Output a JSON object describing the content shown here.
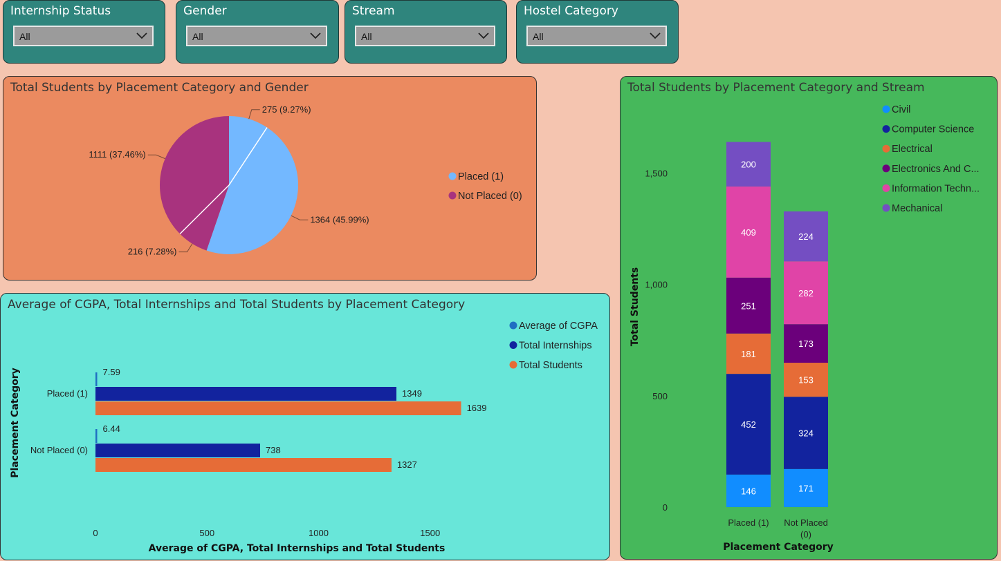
{
  "filters": [
    {
      "title": "Internship Status",
      "value": "All"
    },
    {
      "title": "Gender",
      "value": "All"
    },
    {
      "title": "Stream",
      "value": "All"
    },
    {
      "title": "Hostel Category",
      "value": "All"
    }
  ],
  "colors": {
    "page_bg": "#f5c5b0",
    "slicer_bg": "#2f857d",
    "pie_panel_bg": "#eb8a60",
    "bar_panel_bg": "#68e6d9",
    "stack_panel_bg": "#46b85b",
    "placed": "#73b8ff",
    "not_placed": "#a8337e",
    "cgpa": "#1f6fc2",
    "internships": "#12239e",
    "students": "#e66c37",
    "civil": "#118dff",
    "computer_science": "#12239e",
    "electrical": "#e66c37",
    "electronics": "#6b007b",
    "information_technology": "#e044a7",
    "mechanical": "#744ec2"
  },
  "chart_data": [
    {
      "type": "pie",
      "title": "Total Students by Placement Category and Gender",
      "legend": [
        "Placed (1)",
        "Not Placed (0)"
      ],
      "legend_position": "right",
      "slices": [
        {
          "category": "Placed (1)",
          "value": 275,
          "label": "275 (9.27%)"
        },
        {
          "category": "Placed (1)",
          "value": 1364,
          "label": "1364 (45.99%)"
        },
        {
          "category": "Not Placed (0)",
          "value": 216,
          "label": "216 (7.28%)"
        },
        {
          "category": "Not Placed (0)",
          "value": 1111,
          "label": "1111 (37.46%)"
        }
      ]
    },
    {
      "type": "bar",
      "orientation": "horizontal",
      "title": "Average of CGPA, Total Internships and Total Students by Placement Category",
      "categories": [
        "Placed (1)",
        "Not Placed (0)"
      ],
      "series": [
        {
          "name": "Average of CGPA",
          "values": [
            7.59,
            6.44
          ]
        },
        {
          "name": "Total Internships",
          "values": [
            1349,
            738
          ]
        },
        {
          "name": "Total Students",
          "values": [
            1639,
            1327
          ]
        }
      ],
      "xlabel": "Average of CGPA, Total Internships and Total Students",
      "ylabel": "Placement Category",
      "xticks": [
        "0",
        "500",
        "1000",
        "1500"
      ],
      "xlim": [
        0,
        1800
      ],
      "legend_position": "top-right",
      "grid": false
    },
    {
      "type": "bar",
      "stacked": true,
      "title": "Total Students by Placement Category and Stream",
      "categories": [
        "Placed (1)",
        "Not Placed (0)"
      ],
      "series": [
        {
          "name": "Civil",
          "values": [
            146,
            171
          ]
        },
        {
          "name": "Computer Science",
          "values": [
            452,
            324
          ]
        },
        {
          "name": "Electrical",
          "values": [
            181,
            153
          ]
        },
        {
          "name": "Electronics And C...",
          "values": [
            251,
            173
          ]
        },
        {
          "name": "Information Techn...",
          "values": [
            409,
            282
          ]
        },
        {
          "name": "Mechanical",
          "values": [
            200,
            224
          ]
        }
      ],
      "xlabel": "Placement Category",
      "ylabel": "Total Students",
      "yticks": [
        "0",
        "500",
        "1,000",
        "1,500"
      ],
      "ylim": [
        0,
        1700
      ],
      "legend_position": "top-right",
      "grid": false
    }
  ]
}
